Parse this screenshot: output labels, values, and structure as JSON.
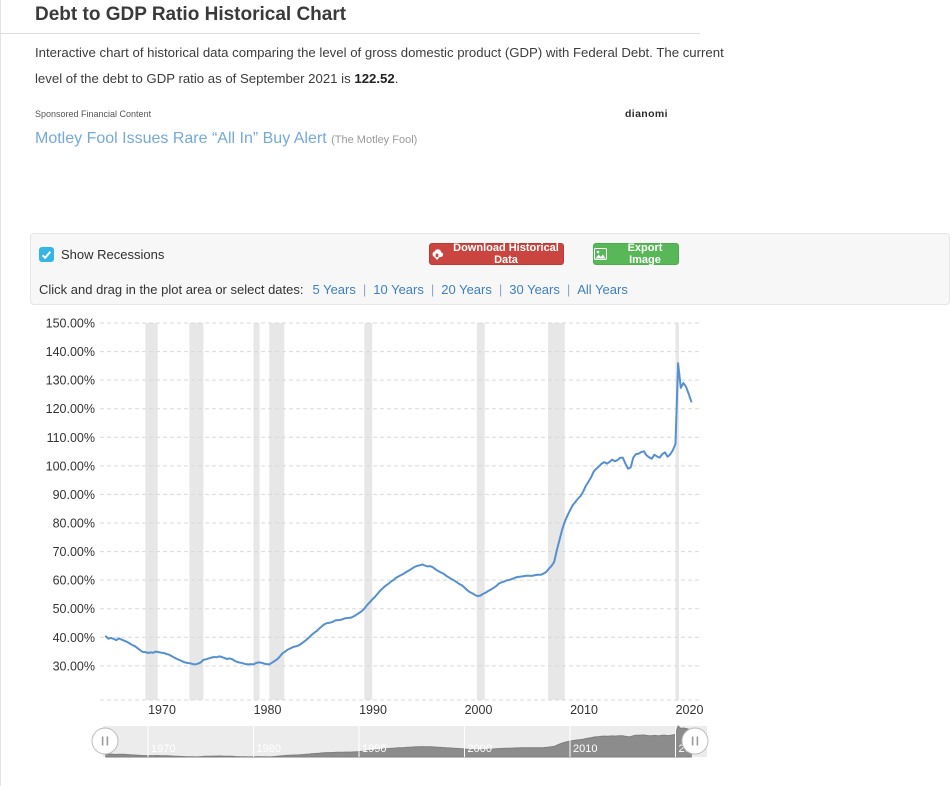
{
  "page": {
    "title": "Debt to GDP Ratio Historical Chart",
    "intro_line1": "Interactive chart of historical data comparing the level of gross domestic product (GDP) with Federal Debt. The current",
    "intro_line2_prefix": "level of the debt to GDP ratio as of September 2021 is ",
    "intro_value": "122.52",
    "intro_suffix": "."
  },
  "sponsored": {
    "label": "Sponsored Financial Content",
    "brand": "dianomi",
    "headline": "Motley Fool Issues Rare “All In” Buy Alert",
    "source": "(The Motley Fool)"
  },
  "controls": {
    "show_recessions_label": "Show Recessions",
    "download_button": "Download Historical Data",
    "export_button": "Export Image",
    "range_prompt": "Click and drag in the plot area or select dates:",
    "range_links": [
      "5 Years",
      "10 Years",
      "20 Years",
      "30 Years",
      "All Years"
    ]
  },
  "chart_data": {
    "type": "line",
    "series_name": "Debt to GDP Ratio",
    "x_start": 1966.0,
    "x_step": 0.25,
    "x_end": 2021.5,
    "values": [
      40.3,
      39.5,
      39.8,
      39.4,
      39.0,
      39.6,
      39.2,
      38.8,
      38.4,
      37.9,
      37.3,
      36.9,
      36.2,
      35.5,
      34.9,
      34.8,
      34.5,
      34.7,
      34.6,
      35.0,
      34.8,
      34.6,
      34.5,
      34.2,
      33.9,
      33.4,
      32.9,
      32.4,
      32.0,
      31.6,
      31.2,
      31.0,
      30.9,
      30.6,
      30.5,
      30.8,
      31.2,
      32.1,
      32.3,
      32.6,
      32.9,
      33.1,
      33.0,
      33.3,
      33.1,
      32.7,
      32.4,
      32.6,
      32.3,
      31.7,
      31.3,
      31.1,
      30.9,
      30.6,
      30.5,
      30.6,
      30.5,
      31.0,
      31.2,
      31.1,
      30.8,
      30.6,
      30.5,
      31.1,
      31.7,
      32.3,
      33.3,
      34.4,
      35.0,
      35.7,
      36.1,
      36.6,
      36.8,
      37.1,
      37.7,
      38.4,
      39.1,
      39.9,
      40.8,
      41.6,
      42.2,
      43.1,
      43.9,
      44.6,
      45.0,
      45.1,
      45.4,
      45.9,
      46.0,
      46.1,
      46.4,
      46.7,
      46.8,
      46.9,
      47.3,
      47.9,
      48.5,
      49.1,
      50.0,
      51.2,
      52.2,
      53.2,
      54.1,
      55.2,
      56.3,
      57.1,
      58.0,
      58.6,
      59.4,
      60.0,
      60.8,
      61.3,
      61.8,
      62.3,
      62.9,
      63.4,
      64.0,
      64.6,
      65.0,
      65.2,
      65.5,
      65.1,
      64.8,
      64.9,
      64.5,
      63.8,
      63.2,
      62.7,
      62.3,
      61.6,
      61.0,
      60.4,
      59.9,
      59.3,
      58.7,
      58.2,
      57.4,
      56.5,
      55.8,
      55.4,
      54.8,
      54.4,
      54.6,
      55.2,
      55.6,
      56.2,
      56.7,
      57.3,
      57.9,
      58.8,
      59.2,
      59.5,
      59.9,
      60.1,
      60.4,
      60.8,
      61.1,
      61.2,
      61.3,
      61.5,
      61.6,
      61.5,
      61.6,
      61.8,
      61.9,
      61.9,
      62.3,
      62.9,
      64.0,
      65.0,
      66.4,
      70.4,
      74.1,
      77.6,
      80.4,
      82.6,
      84.4,
      86.2,
      87.3,
      88.5,
      89.4,
      91.0,
      93.0,
      94.5,
      96.0,
      98.0,
      99.0,
      99.8,
      100.8,
      101.3,
      100.8,
      101.4,
      102.2,
      101.6,
      102.0,
      102.8,
      102.9,
      100.8,
      99.0,
      99.5,
      102.9,
      104.1,
      104.3,
      104.8,
      105.1,
      103.7,
      103.0,
      102.5,
      103.9,
      103.3,
      102.9,
      104.1,
      104.7,
      103.2,
      104.0,
      105.5,
      107.7,
      135.9,
      127.3,
      129.0,
      127.6,
      125.2,
      122.5
    ],
    "y_ticks": [
      150,
      140,
      130,
      120,
      110,
      100,
      90,
      80,
      70,
      60,
      50,
      40,
      30
    ],
    "y_tick_suffix": "%",
    "x_ticks": [
      1970,
      1980,
      1990,
      2000,
      2010,
      2020
    ],
    "ylim": [
      30,
      150
    ],
    "xlim": [
      1965.5,
      2022
    ],
    "grid": "dashed-horizontal",
    "legend": "none",
    "recessions": [
      [
        1969.75,
        1970.92
      ],
      [
        1973.92,
        1975.25
      ],
      [
        1980.0,
        1980.58
      ],
      [
        1981.5,
        1982.92
      ],
      [
        1990.5,
        1991.25
      ],
      [
        2001.17,
        2001.92
      ],
      [
        2007.92,
        2009.5
      ],
      [
        2020.0,
        2020.33
      ]
    ],
    "navigator_labels": [
      "1970",
      "1980",
      "1990",
      "2000",
      "2010",
      "2020"
    ],
    "last_point": {
      "date": "September 2021",
      "value": 122.52
    },
    "colors": {
      "line": "#5690d0",
      "recession_band": "#e7e7e7",
      "grid": "#d9d9d9",
      "axis_text": "#333333",
      "navigator_fill": "#8c8c8c",
      "navigator_bg": "#ececec",
      "navigator_label": "#ffffff"
    }
  }
}
